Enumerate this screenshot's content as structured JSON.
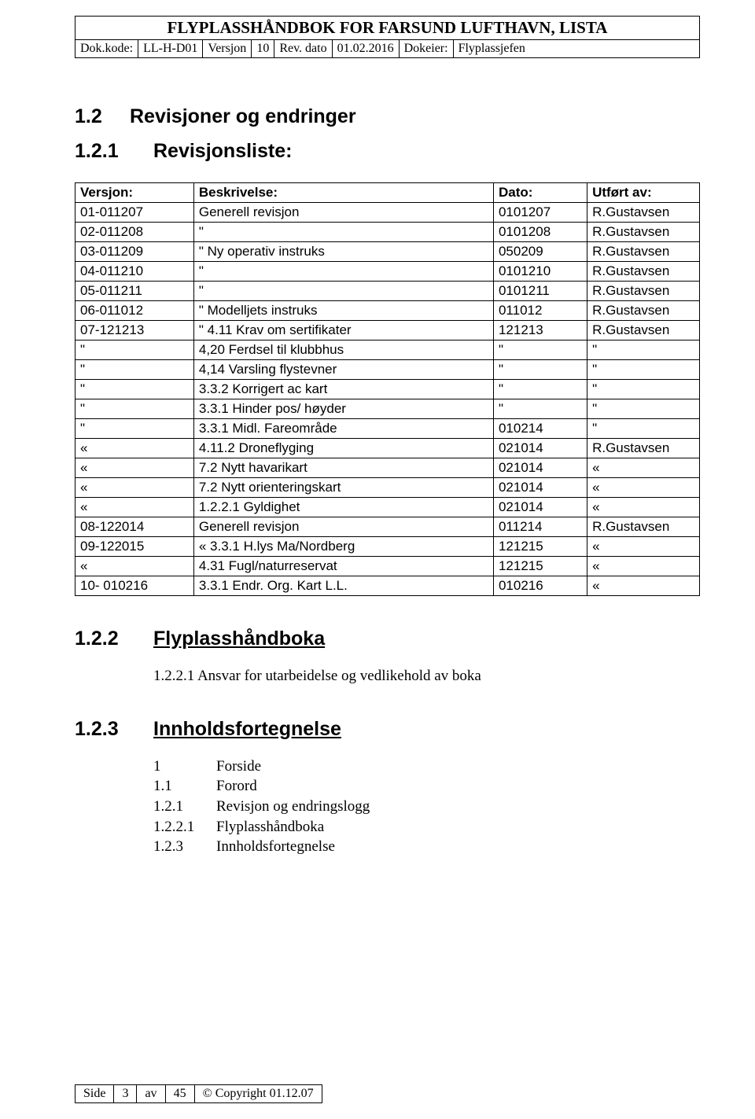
{
  "header": {
    "title": "FLYPLASSHÅNDBOK FOR FARSUND LUFTHAVN, LISTA",
    "meta": {
      "dokkode_label": "Dok.kode:",
      "dokkode": "LL-H-D01",
      "versjon_label": "Versjon",
      "versjon": "10",
      "revdato_label": "Rev. dato",
      "revdato": "01.02.2016",
      "dokeier_label": "Dokeier:",
      "dokeier": "Flyplassjefen"
    }
  },
  "s12": {
    "num": "1.2",
    "title": "Revisjoner og endringer"
  },
  "s121": {
    "num": "1.2.1",
    "title": "Revisjonsliste:"
  },
  "tableHeaders": {
    "v": "Versjon:",
    "b": "Beskrivelse:",
    "d": "Dato:",
    "u": "Utført av:"
  },
  "rows": [
    {
      "v": "01-011207",
      "b": "Generell revisjon",
      "d": "0101207",
      "u": "R.Gustavsen"
    },
    {
      "v": "02-011208",
      "b": "\"",
      "d": "0101208",
      "u": "R.Gustavsen"
    },
    {
      "v": "03-011209",
      "b": "\"   Ny operativ instruks",
      "d": "050209",
      "u": "R.Gustavsen"
    },
    {
      "v": "04-011210",
      "b": "\"",
      "d": "0101210",
      "u": "R.Gustavsen"
    },
    {
      "v": "05-011211",
      "b": "\"",
      "d": "0101211",
      "u": "R.Gustavsen"
    },
    {
      "v": "06-011012",
      "b": "\"   Modelljets  instruks",
      "d": "011012",
      "u": "R.Gustavsen"
    },
    {
      "v": "07-121213",
      "b": "\"   4.11 Krav om sertifikater",
      "d": "121213",
      "u": "R.Gustavsen"
    },
    {
      "v": "\"",
      "b": "4,20 Ferdsel til klubbhus",
      "d": "\"",
      "u": "\""
    },
    {
      "v": "\"",
      "b": "4,14 Varsling flystevner",
      "d": "\"",
      "u": "\""
    },
    {
      "v": "\"",
      "b": "3.3.2 Korrigert ac kart",
      "d": "\"",
      "u": "\""
    },
    {
      "v": "\"",
      "b": "3.3.1 Hinder pos/ høyder",
      "d": "\"",
      "u": "\""
    },
    {
      "v": "\"",
      "b": "3.3.1 Midl. Fareområde",
      "d": "010214",
      "u": "\""
    },
    {
      "v": "«",
      "b": "4.11.2 Droneflyging",
      "d": "021014",
      "u": "R.Gustavsen"
    },
    {
      "v": "«",
      "b": "7.2 Nytt havarikart",
      "d": "021014",
      "u": "«"
    },
    {
      "v": "«",
      "b": "7.2 Nytt orienteringskart",
      "d": "021014",
      "u": "«"
    },
    {
      "v": "«",
      "b": "1.2.2.1 Gyldighet",
      "d": "021014",
      "u": "«"
    },
    {
      "v": "08-122014",
      "b": "Generell revisjon",
      "d": "011214",
      "u": "R.Gustavsen"
    },
    {
      "v": "09-122015",
      "b": "«  3.3.1 H.lys Ma/Nordberg",
      "d": "121215",
      "u": "«"
    },
    {
      "v": "«",
      "b": "4.31  Fugl/naturreservat",
      "d": "121215",
      "u": "«"
    },
    {
      "v": "10- 010216",
      "b": "3.3.1 Endr. Org. Kart L.L.",
      "d": "010216",
      "u": "«"
    }
  ],
  "s122": {
    "num": "1.2.2",
    "title": "Flyplasshåndboka"
  },
  "s1221": "1.2.2.1 Ansvar for utarbeidelse og vedlikehold av boka",
  "s123": {
    "num": "1.2.3",
    "title": "Innholdsfortegnelse"
  },
  "toc": [
    {
      "n": "1",
      "t": "Forside"
    },
    {
      "n": "1.1",
      "t": "Forord"
    },
    {
      "n": "1.2.1",
      "t": "Revisjon og endringslogg"
    },
    {
      "n": "1.2.2.1",
      "t": "Flyplasshåndboka"
    },
    {
      "n": "1.2.3",
      "t": "Innholdsfortegnelse"
    }
  ],
  "footer": {
    "side_label": "Side",
    "side": "3",
    "av_label": "av",
    "av": "45",
    "copyright": "© Copyright  01.12.07"
  },
  "style": {
    "border_color": "#000000",
    "background_color": "#ffffff",
    "text_color": "#000000"
  }
}
